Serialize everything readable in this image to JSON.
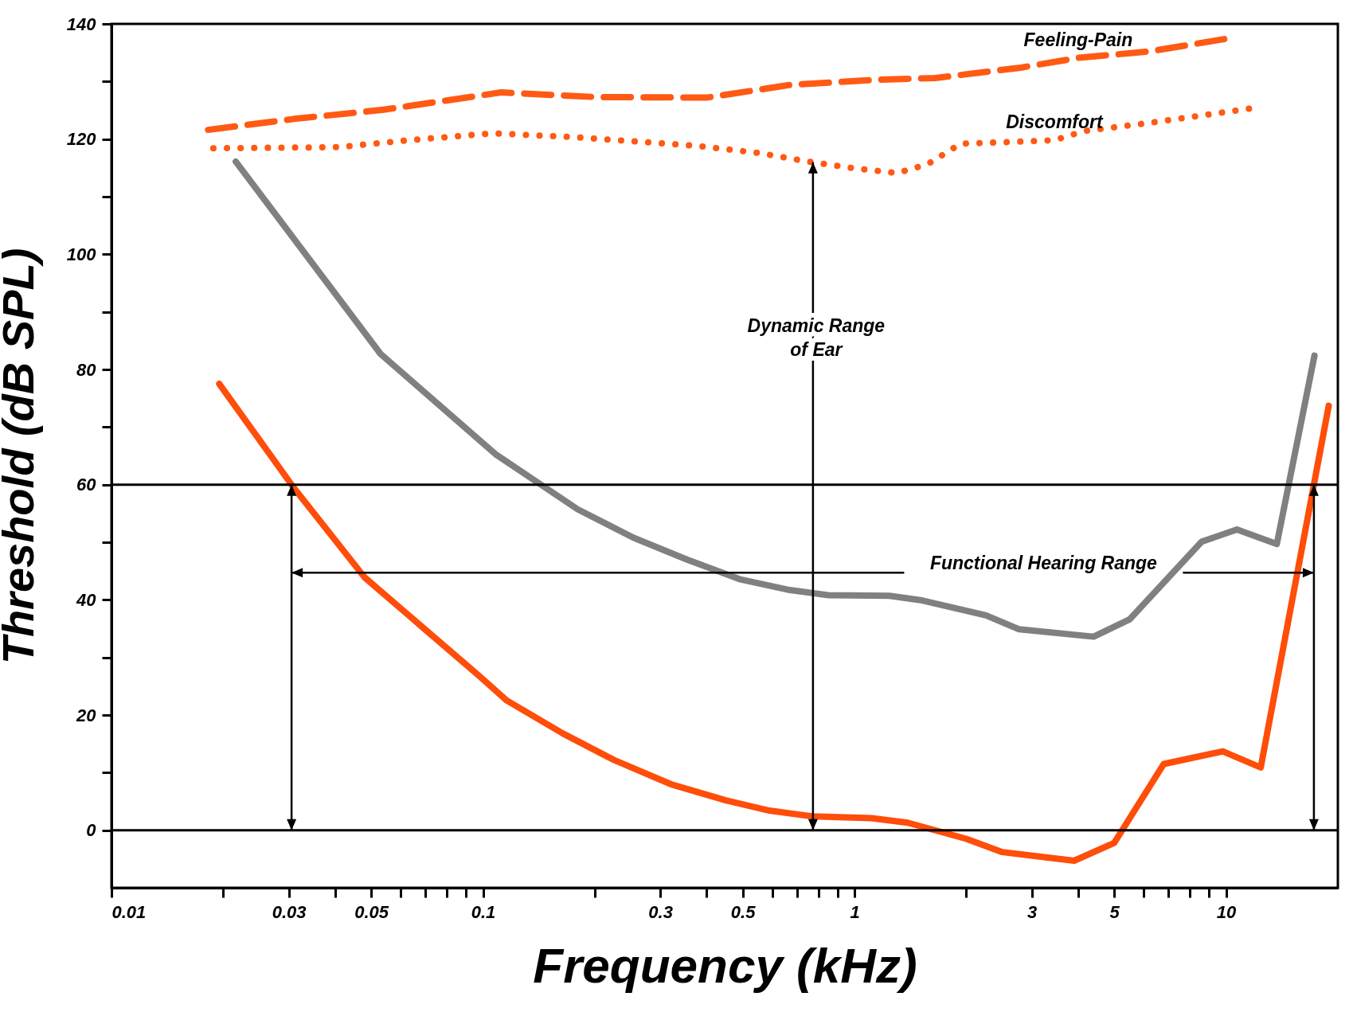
{
  "chart_data": {
    "type": "line",
    "xlabel": "Frequency (kHz)",
    "ylabel": "Threshold (dB SPL)",
    "log": "x",
    "xlim": [
      0.01,
      20
    ],
    "ylim": [
      -10,
      140
    ],
    "xticks": [
      0.01,
      {
        "value": 0.02,
        "label": null
      },
      0.03,
      {
        "value": 0.04,
        "label": null
      },
      0.05,
      {
        "value": 0.06,
        "label": null
      },
      {
        "value": 0.07,
        "label": null
      },
      {
        "value": 0.08,
        "label": null
      },
      {
        "value": 0.09,
        "label": null
      },
      0.1,
      {
        "value": 0.2,
        "label": null
      },
      0.3,
      {
        "value": 0.4,
        "label": null
      },
      0.5,
      {
        "value": 0.6,
        "label": null
      },
      {
        "value": 0.7,
        "label": null
      },
      {
        "value": 0.8,
        "label": null
      },
      {
        "value": 0.9,
        "label": null
      },
      1,
      {
        "value": 2,
        "label": null
      },
      3,
      {
        "value": 4,
        "label": null
      },
      5,
      {
        "value": 6,
        "label": null
      },
      {
        "value": 7,
        "label": null
      },
      {
        "value": 8,
        "label": null
      },
      {
        "value": 9,
        "label": null
      },
      10
    ],
    "yticks": [
      0,
      {
        "value": 10,
        "label": null
      },
      20,
      {
        "value": 30,
        "label": null
      },
      40,
      {
        "value": 50,
        "label": null
      },
      60,
      {
        "value": 70,
        "label": null
      },
      80,
      {
        "value": 90,
        "label": null
      },
      100,
      {
        "value": 110,
        "label": null
      },
      120,
      {
        "value": 130,
        "label": null
      },
      140
    ],
    "grid": false,
    "marker": "none",
    "series": [
      {
        "color": "#ff4d0a",
        "line_style": "solid",
        "x": [
          0.0195,
          0.031,
          0.048,
          0.068,
          0.098,
          0.116,
          0.164,
          0.225,
          0.32,
          0.45,
          0.59,
          0.77,
          1.11,
          1.39,
          2.0,
          2.5,
          3.9,
          5.0,
          6.8,
          9.8,
          12.4,
          18.9
        ],
        "values": [
          77.5,
          59.4,
          43.9,
          35.5,
          26.7,
          22.5,
          16.8,
          12.2,
          8.0,
          5.2,
          3.4,
          2.4,
          2.1,
          1.3,
          -1.5,
          -3.8,
          -5.3,
          -2.2,
          11.5,
          13.7,
          10.9,
          73.7
        ]
      },
      {
        "color": "#808080",
        "line_style": "solid",
        "x": [
          0.0216,
          0.053,
          0.108,
          0.18,
          0.254,
          0.354,
          0.49,
          0.67,
          0.85,
          1.24,
          1.52,
          2.26,
          2.77,
          4.4,
          5.5,
          8.6,
          10.7,
          13.7,
          17.3
        ],
        "values": [
          116.1,
          82.7,
          65.3,
          55.7,
          50.8,
          47.0,
          43.6,
          41.7,
          40.8,
          40.7,
          39.9,
          37.3,
          34.9,
          33.6,
          36.6,
          50.1,
          52.2,
          49.7,
          82.4
        ]
      },
      {
        "name": "Feeling-Pain",
        "color": "#ff5a14",
        "line_style": "dashed",
        "x": [
          0.0182,
          0.031,
          0.054,
          0.112,
          0.2,
          0.4,
          0.67,
          1.14,
          1.65,
          2.8,
          4.0,
          6.2,
          10.2
        ],
        "values": [
          121.6,
          123.5,
          125.1,
          128.1,
          127.3,
          127.2,
          129.4,
          130.3,
          130.6,
          132.4,
          134.1,
          135.2,
          137.5
        ]
      },
      {
        "name": "Discomfort",
        "color": "#ff5a14",
        "line_style": "dotted",
        "x": [
          0.0188,
          0.041,
          0.063,
          0.106,
          0.18,
          0.38,
          0.55,
          0.75,
          0.98,
          1.3,
          1.57,
          1.93,
          2.65,
          3.45,
          4.15,
          6.2,
          11.9
        ],
        "values": [
          118.4,
          118.6,
          119.8,
          121.0,
          120.3,
          118.8,
          117.6,
          116.1,
          115.0,
          114.1,
          115.6,
          119.2,
          119.5,
          119.8,
          121.4,
          122.8,
          125.4
        ]
      }
    ],
    "ref_lines": [
      {
        "axis": "y",
        "value": 60,
        "label": null,
        "color": "#000000"
      },
      {
        "axis": "y",
        "value": 0,
        "label": null,
        "color": "#000000"
      }
    ],
    "annotations": [
      "Dynamic Range\nof Ear",
      "Functional Hearing Range"
    ]
  }
}
